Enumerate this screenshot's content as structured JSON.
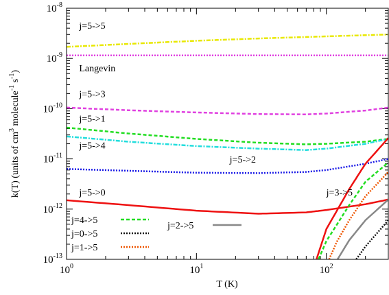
{
  "chart_data": {
    "type": "line",
    "xlabel": "T (K)",
    "ylabel": {
      "parts": [
        {
          "text": "k(T) (units of cm",
          "sup": false
        },
        {
          "text": "3",
          "sup": true
        },
        {
          "text": " molecule",
          "sup": false
        },
        {
          "text": "-1",
          "sup": true
        },
        {
          "text": " s",
          "sup": false
        },
        {
          "text": "-1",
          "sup": true
        },
        {
          "text": ")",
          "sup": false
        }
      ]
    },
    "x_scale": "log",
    "y_scale": "log",
    "xlim": [
      1,
      300
    ],
    "ylim": [
      1e-13,
      1e-08
    ],
    "x_ticks": [
      {
        "value": 1,
        "base": "10",
        "exp": "0"
      },
      {
        "value": 10,
        "base": "10",
        "exp": "1"
      },
      {
        "value": 100,
        "base": "10",
        "exp": "2"
      }
    ],
    "y_ticks": [
      {
        "value": 1e-13,
        "base": "10",
        "exp": "-13"
      },
      {
        "value": 1e-12,
        "base": "10",
        "exp": "-12"
      },
      {
        "value": 1e-11,
        "base": "10",
        "exp": "-11"
      },
      {
        "value": 1e-10,
        "base": "10",
        "exp": "-10"
      },
      {
        "value": 1e-09,
        "base": "10",
        "exp": "-9"
      },
      {
        "value": 1e-08,
        "base": "10",
        "exp": "-8"
      }
    ],
    "series": [
      {
        "name": "j=5->5",
        "color": "#e8e800",
        "dash": "dashdot",
        "x": [
          1,
          3,
          10,
          30,
          100,
          300
        ],
        "y": [
          1.7e-09,
          1.95e-09,
          2.25e-09,
          2.5e-09,
          2.75e-09,
          3e-09
        ]
      },
      {
        "name": "Langevin",
        "color": "#e040e0",
        "dash": "dotted",
        "x": [
          1,
          300
        ],
        "y": [
          1.15e-09,
          1.15e-09
        ]
      },
      {
        "name": "j=5->3",
        "color": "#e040e0",
        "dash": "dashed",
        "x": [
          1,
          3,
          10,
          30,
          70,
          100,
          200,
          300
        ],
        "y": [
          1.05e-10,
          9.3e-11,
          8.4e-11,
          7.8e-11,
          7.7e-11,
          8e-11,
          9.2e-11,
          1.05e-10
        ]
      },
      {
        "name": "j=5->1",
        "color": "#22dd22",
        "dash": "dashed",
        "x": [
          1,
          3,
          10,
          30,
          70,
          100,
          200,
          300
        ],
        "y": [
          4.2e-11,
          3.2e-11,
          2.5e-11,
          2.1e-11,
          1.95e-11,
          2e-11,
          2.2e-11,
          2.5e-11
        ]
      },
      {
        "name": "j=5->4",
        "color": "#22dddd",
        "dash": "dashdot",
        "x": [
          1,
          3,
          10,
          30,
          70,
          100,
          200,
          300
        ],
        "y": [
          2.8e-11,
          2.2e-11,
          1.8e-11,
          1.6e-11,
          1.5e-11,
          1.6e-11,
          2e-11,
          2.5e-11
        ]
      },
      {
        "name": "j=5->2",
        "color": "#1a1ae6",
        "dash": "dotted",
        "x": [
          1,
          3,
          10,
          30,
          70,
          100,
          200,
          300
        ],
        "y": [
          6.3e-12,
          5.8e-12,
          5.3e-12,
          5.2e-12,
          5.5e-12,
          6e-12,
          8e-12,
          1e-11
        ]
      },
      {
        "name": "j=5->0",
        "color": "#ee1111",
        "dash": "solid",
        "x": [
          1,
          3,
          10,
          30,
          70,
          100,
          200,
          300
        ],
        "y": [
          1.5e-12,
          1.2e-12,
          9.3e-13,
          8.1e-13,
          8.6e-13,
          9.6e-13,
          1.25e-12,
          1.55e-12
        ]
      },
      {
        "name": "j=3->5",
        "color": "#ee1111",
        "dash": "solid",
        "x": [
          84,
          100,
          150,
          200,
          300
        ],
        "y": [
          1e-13,
          4e-13,
          2.5e-12,
          8e-12,
          2.6e-11
        ]
      },
      {
        "name": "j=4->5",
        "color": "#22dd22",
        "dash": "dashed",
        "x": [
          87,
          100,
          150,
          200,
          300
        ],
        "y": [
          1e-13,
          2.3e-13,
          1.2e-12,
          3.5e-12,
          8.5e-12
        ]
      },
      {
        "name": "j=1->5",
        "color": "#ee5500",
        "dash": "dotted",
        "x": [
          105,
          120,
          150,
          200,
          300
        ],
        "y": [
          1e-13,
          2.2e-13,
          6e-13,
          1.8e-12,
          5.5e-12
        ]
      },
      {
        "name": "j=2->5",
        "color": "#888888",
        "dash": "solid",
        "x": [
          122,
          150,
          200,
          300
        ],
        "y": [
          1e-13,
          2.4e-13,
          6e-13,
          1.55e-12
        ]
      },
      {
        "name": "j=0->5",
        "color": "#111111",
        "dash": "dotted",
        "x": [
          170,
          200,
          250,
          300
        ],
        "y": [
          1e-13,
          1.8e-13,
          3.5e-13,
          6e-13
        ]
      }
    ],
    "curve_labels": [
      {
        "text": "j=5->5",
        "x": 1.25,
        "y": 3.9e-09
      },
      {
        "text": "Langevin",
        "x": 1.25,
        "y": 5.5e-10
      },
      {
        "text": "j=5->3",
        "x": 1.25,
        "y": 1.7e-10
      },
      {
        "text": "j=5->1",
        "x": 1.25,
        "y": 5.5e-11
      },
      {
        "text": "j=5->4",
        "x": 1.25,
        "y": 1.6e-11
      },
      {
        "text": "j=5->2",
        "x": 18,
        "y": 8.5e-12
      },
      {
        "text": "j=5->0",
        "x": 1.25,
        "y": 1.85e-12
      },
      {
        "text": "j=3->5",
        "x": 100,
        "y": 1.85e-12
      }
    ],
    "legend_left": [
      {
        "text": "j=4->5",
        "color": "#22dd22",
        "dash": "dashed"
      },
      {
        "text": "j=0->5",
        "color": "#111111",
        "dash": "dotted"
      },
      {
        "text": "j=1->5",
        "color": "#ee5500",
        "dash": "dotted"
      }
    ],
    "legend_right": {
      "text": "j=2->5",
      "color": "#888888",
      "dash": "solid"
    }
  }
}
